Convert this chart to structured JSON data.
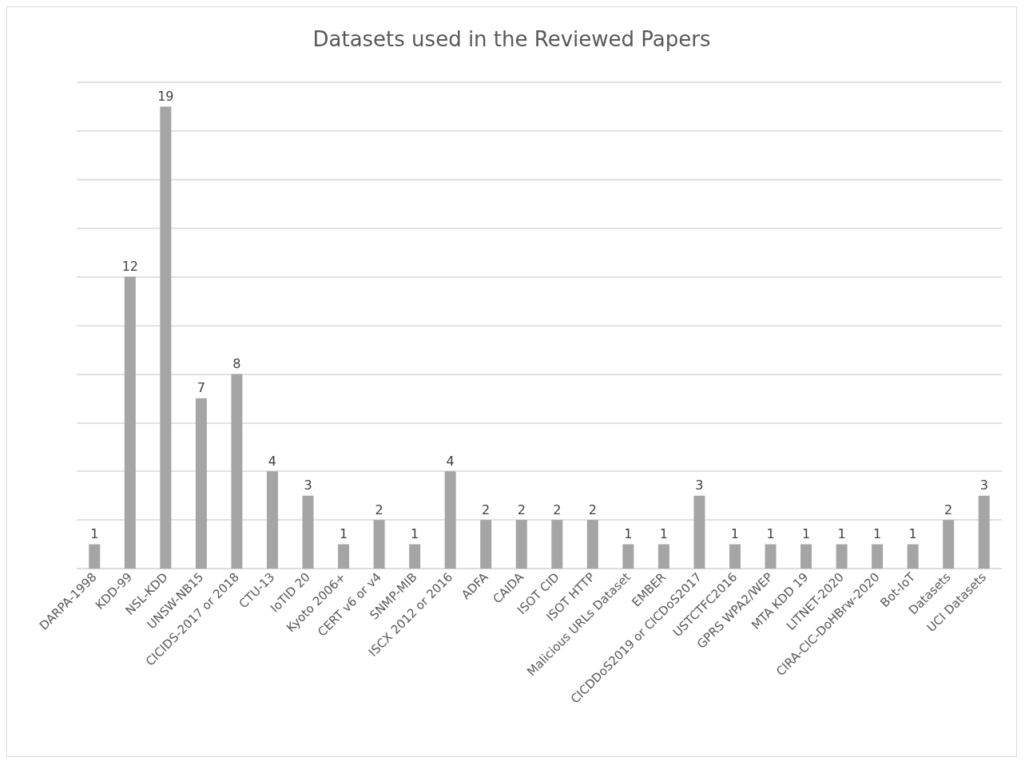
{
  "chart_data": {
    "type": "bar",
    "title": "Datasets used in the Reviewed Papers",
    "categories": [
      "DARPA-1998",
      "KDD-99",
      "NSL-KDD",
      "UNSW-NB15",
      "CICIDS-2017 or 2018",
      "CTU-13",
      "IoTID 20",
      "Kyoto 2006+",
      "CERT v6 or v4",
      "SNMP-MIB",
      "ISCX 2012 or 2016",
      "ADFA",
      "CAIDA",
      "ISOT CID",
      "ISOT HTTP",
      "Malicious URLs Dataset",
      "EMBER",
      "CICDDoS2019 or CICDoS2017",
      "USTCTFC2016",
      "GPRS WPA2/WEP",
      "MTA KDD 19",
      "LITNET-2020",
      "CIRA-CIC-DoHBrw-2020",
      "Bot-IoT",
      "Datasets",
      "UCI Datasets"
    ],
    "values": [
      1,
      12,
      19,
      7,
      8,
      4,
      3,
      1,
      2,
      1,
      4,
      2,
      2,
      2,
      2,
      1,
      1,
      3,
      1,
      1,
      1,
      1,
      1,
      1,
      2,
      3
    ],
    "color": "#a5a5a5",
    "ylim": [
      0,
      20
    ],
    "yticks": [
      {
        "value": 0,
        "label": null
      },
      {
        "value": 2,
        "label": null
      },
      {
        "value": 4,
        "label": null
      },
      {
        "value": 6,
        "label": null
      },
      {
        "value": 8,
        "label": null
      },
      {
        "value": 10,
        "label": null
      },
      {
        "value": 12,
        "label": null
      },
      {
        "value": 14,
        "label": null
      },
      {
        "value": 16,
        "label": null
      },
      {
        "value": 18,
        "label": null
      },
      {
        "value": 20,
        "label": null
      }
    ],
    "grid": "y",
    "tick_labels": "x",
    "data_labels": true
  }
}
